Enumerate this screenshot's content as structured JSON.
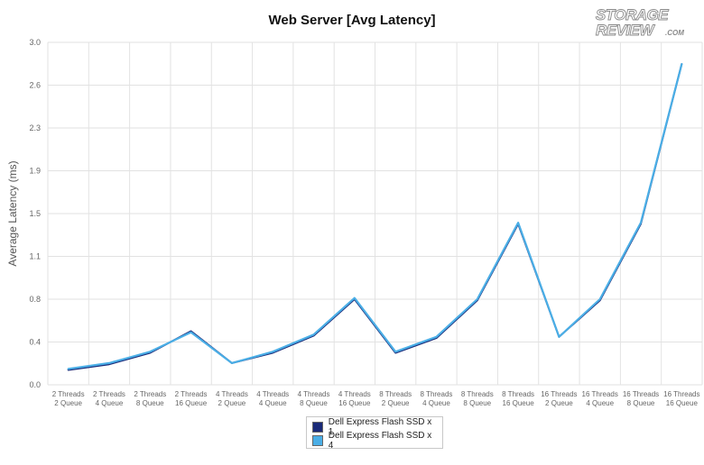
{
  "chart_data": {
    "type": "line",
    "title": "Web Server [Avg Latency]",
    "ylabel": "Average Latency (ms)",
    "xlabel": "",
    "ylim": [
      0,
      3.0
    ],
    "yticks": [
      "0.0",
      "0.4",
      "0.8",
      "1.1",
      "1.5",
      "1.9",
      "2.3",
      "2.6",
      "3.0"
    ],
    "grid": true,
    "legend_position": "bottom-center",
    "categories": [
      [
        "2 Threads",
        "2 Queue"
      ],
      [
        "2 Threads",
        "4 Queue"
      ],
      [
        "2 Threads",
        "8 Queue"
      ],
      [
        "2 Threads",
        "16 Queue"
      ],
      [
        "4 Threads",
        "2 Queue"
      ],
      [
        "4 Threads",
        "4 Queue"
      ],
      [
        "4 Threads",
        "8 Queue"
      ],
      [
        "4 Threads",
        "16 Queue"
      ],
      [
        "8 Threads",
        "2 Queue"
      ],
      [
        "8 Threads",
        "4 Queue"
      ],
      [
        "8 Threads",
        "8 Queue"
      ],
      [
        "8 Threads",
        "16 Queue"
      ],
      [
        "16 Threads",
        "2 Queue"
      ],
      [
        "16 Threads",
        "4 Queue"
      ],
      [
        "16 Threads",
        "8 Queue"
      ],
      [
        "16 Threads",
        "16 Queue"
      ]
    ],
    "series": [
      {
        "name": "Dell Express Flash SSD x 1",
        "color": "#1a2a78",
        "values": [
          0.13,
          0.18,
          0.28,
          0.47,
          0.19,
          0.28,
          0.43,
          0.75,
          0.28,
          0.41,
          0.74,
          1.41,
          0.42,
          0.74,
          1.41,
          2.81
        ]
      },
      {
        "name": "Dell Express Flash SSD x 4",
        "color": "#4aaee6",
        "values": [
          0.14,
          0.19,
          0.29,
          0.46,
          0.19,
          0.29,
          0.44,
          0.76,
          0.29,
          0.42,
          0.75,
          1.42,
          0.42,
          0.75,
          1.42,
          2.81
        ]
      }
    ]
  },
  "branding": {
    "logo_line1": "STORAGE",
    "logo_line2": "REVIEW",
    "logo_suffix": ".COM"
  }
}
